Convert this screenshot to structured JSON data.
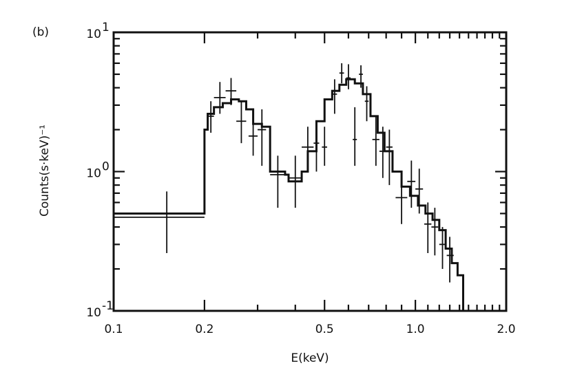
{
  "panel_label": "(b)",
  "chart_data": {
    "type": "line",
    "xlabel": "E(keV)",
    "ylabel": "Counts(s·keV)⁻¹",
    "x_scale": "log",
    "y_scale": "log",
    "xlim": [
      0.1,
      2.0
    ],
    "ylim": [
      0.1,
      10
    ],
    "x_ticks": [
      {
        "value": 0.1,
        "label": "0.1"
      },
      {
        "value": 0.2,
        "label": "0.2"
      },
      {
        "value": 0.5,
        "label": "0.5"
      },
      {
        "value": 1.0,
        "label": "1.0"
      },
      {
        "value": 2.0,
        "label": "2.0"
      }
    ],
    "y_ticks": [
      {
        "value": 10,
        "base": "10",
        "exp": "1"
      },
      {
        "value": 1,
        "base": "10",
        "exp": "0"
      },
      {
        "value": 0.1,
        "base": "10",
        "exp": "-1"
      }
    ],
    "model_step": [
      [
        0.1,
        0.5
      ],
      [
        0.2,
        0.5
      ],
      [
        0.2,
        2.0
      ],
      [
        0.205,
        2.6
      ],
      [
        0.215,
        2.9
      ],
      [
        0.23,
        3.1
      ],
      [
        0.245,
        3.3
      ],
      [
        0.26,
        3.2
      ],
      [
        0.275,
        2.8
      ],
      [
        0.29,
        2.2
      ],
      [
        0.31,
        2.1
      ],
      [
        0.33,
        1.0
      ],
      [
        0.37,
        0.95
      ],
      [
        0.38,
        0.85
      ],
      [
        0.42,
        0.85
      ],
      [
        0.42,
        1.0
      ],
      [
        0.44,
        1.4
      ],
      [
        0.47,
        2.3
      ],
      [
        0.5,
        3.3
      ],
      [
        0.53,
        3.8
      ],
      [
        0.56,
        4.2
      ],
      [
        0.59,
        4.6
      ],
      [
        0.63,
        4.3
      ],
      [
        0.67,
        3.6
      ],
      [
        0.71,
        2.5
      ],
      [
        0.75,
        1.9
      ],
      [
        0.79,
        1.4
      ],
      [
        0.84,
        1.0
      ],
      [
        0.9,
        0.78
      ],
      [
        0.96,
        0.67
      ],
      [
        1.02,
        0.57
      ],
      [
        1.08,
        0.5
      ],
      [
        1.14,
        0.45
      ],
      [
        1.2,
        0.38
      ],
      [
        1.26,
        0.28
      ],
      [
        1.32,
        0.22
      ],
      [
        1.38,
        0.18
      ],
      [
        1.44,
        0.1
      ]
    ],
    "data_points": [
      {
        "x": 0.15,
        "xlo": 0.1,
        "xhi": 0.2,
        "y": 0.47,
        "ylo": 0.26,
        "yhi": 0.72
      },
      {
        "x": 0.21,
        "xlo": 0.205,
        "xhi": 0.215,
        "y": 2.5,
        "ylo": 1.9,
        "yhi": 3.2
      },
      {
        "x": 0.225,
        "xlo": 0.215,
        "xhi": 0.235,
        "y": 3.4,
        "ylo": 2.6,
        "yhi": 4.4
      },
      {
        "x": 0.245,
        "xlo": 0.235,
        "xhi": 0.255,
        "y": 3.8,
        "ylo": 3.0,
        "yhi": 4.7
      },
      {
        "x": 0.265,
        "xlo": 0.255,
        "xhi": 0.275,
        "y": 2.3,
        "ylo": 1.6,
        "yhi": 3.2
      },
      {
        "x": 0.29,
        "xlo": 0.28,
        "xhi": 0.3,
        "y": 1.8,
        "ylo": 1.3,
        "yhi": 2.6
      },
      {
        "x": 0.31,
        "xlo": 0.3,
        "xhi": 0.32,
        "y": 2.0,
        "ylo": 1.1,
        "yhi": 2.8
      },
      {
        "x": 0.35,
        "xlo": 0.33,
        "xhi": 0.37,
        "y": 0.95,
        "ylo": 0.55,
        "yhi": 1.3
      },
      {
        "x": 0.4,
        "xlo": 0.38,
        "xhi": 0.42,
        "y": 0.9,
        "ylo": 0.55,
        "yhi": 1.3
      },
      {
        "x": 0.44,
        "xlo": 0.42,
        "xhi": 0.46,
        "y": 1.5,
        "ylo": 1.0,
        "yhi": 2.1
      },
      {
        "x": 0.47,
        "xlo": 0.46,
        "xhi": 0.48,
        "y": 1.6,
        "ylo": 1.0,
        "yhi": 2.2
      },
      {
        "x": 0.5,
        "xlo": 0.49,
        "xhi": 0.51,
        "y": 1.5,
        "ylo": 1.1,
        "yhi": 2.1
      },
      {
        "x": 0.54,
        "xlo": 0.53,
        "xhi": 0.55,
        "y": 3.6,
        "ylo": 2.6,
        "yhi": 4.6
      },
      {
        "x": 0.57,
        "xlo": 0.56,
        "xhi": 0.58,
        "y": 5.1,
        "ylo": 4.3,
        "yhi": 6.0
      },
      {
        "x": 0.6,
        "xlo": 0.59,
        "xhi": 0.61,
        "y": 4.7,
        "ylo": 3.9,
        "yhi": 5.9
      },
      {
        "x": 0.63,
        "xlo": 0.62,
        "xhi": 0.64,
        "y": 1.7,
        "ylo": 1.1,
        "yhi": 2.9
      },
      {
        "x": 0.66,
        "xlo": 0.65,
        "xhi": 0.67,
        "y": 5.0,
        "ylo": 4.0,
        "yhi": 5.8
      },
      {
        "x": 0.69,
        "xlo": 0.68,
        "xhi": 0.7,
        "y": 3.2,
        "ylo": 2.3,
        "yhi": 4.1
      },
      {
        "x": 0.74,
        "xlo": 0.72,
        "xhi": 0.76,
        "y": 1.7,
        "ylo": 1.1,
        "yhi": 2.5
      },
      {
        "x": 0.78,
        "xlo": 0.76,
        "xhi": 0.8,
        "y": 1.4,
        "ylo": 0.9,
        "yhi": 2.1
      },
      {
        "x": 0.82,
        "xlo": 0.8,
        "xhi": 0.84,
        "y": 1.5,
        "ylo": 0.8,
        "yhi": 2.0
      },
      {
        "x": 0.9,
        "xlo": 0.86,
        "xhi": 0.94,
        "y": 0.65,
        "ylo": 0.42,
        "yhi": 0.95
      },
      {
        "x": 0.97,
        "xlo": 0.94,
        "xhi": 1.0,
        "y": 0.85,
        "ylo": 0.55,
        "yhi": 1.2
      },
      {
        "x": 1.03,
        "xlo": 1.0,
        "xhi": 1.06,
        "y": 0.75,
        "ylo": 0.5,
        "yhi": 1.05
      },
      {
        "x": 1.1,
        "xlo": 1.07,
        "xhi": 1.13,
        "y": 0.42,
        "ylo": 0.26,
        "yhi": 0.6
      },
      {
        "x": 1.16,
        "xlo": 1.13,
        "xhi": 1.19,
        "y": 0.4,
        "ylo": 0.25,
        "yhi": 0.55
      },
      {
        "x": 1.23,
        "xlo": 1.2,
        "xhi": 1.26,
        "y": 0.3,
        "ylo": 0.2,
        "yhi": 0.4
      },
      {
        "x": 1.3,
        "xlo": 1.27,
        "xhi": 1.34,
        "y": 0.25,
        "ylo": 0.16,
        "yhi": 0.34
      }
    ]
  }
}
